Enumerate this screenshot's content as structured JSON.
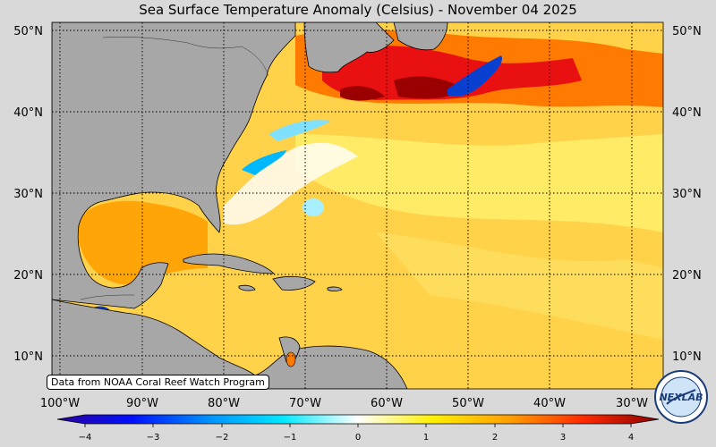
{
  "title": "Sea Surface Temperature Anomaly (Celsius) - November 04 2025",
  "credit": "Data from NOAA Coral Reef Watch Program",
  "logo_text": "NEXLAB",
  "lat_labels": [
    "50°N",
    "40°N",
    "30°N",
    "20°N",
    "10°N"
  ],
  "lon_labels": [
    "100°W",
    "90°W",
    "80°W",
    "70°W",
    "60°W",
    "50°W",
    "40°W",
    "30°W"
  ],
  "colorbar": {
    "ticks": [
      "−4",
      "−3",
      "−2",
      "−1",
      "0",
      "1",
      "2",
      "3",
      "4"
    ],
    "range": [
      -4,
      4
    ],
    "stops": [
      "#2a00a0",
      "#0010ff",
      "#0090ff",
      "#00e8ff",
      "#ffffff",
      "#fff000",
      "#ffa000",
      "#ff2a00",
      "#8a0000"
    ]
  },
  "colors": {
    "land": "#a7a7a7",
    "warm_anomaly": "#ffd24a",
    "strong_warm": "#e81010",
    "cold_anomaly": "#0a60ff"
  }
}
